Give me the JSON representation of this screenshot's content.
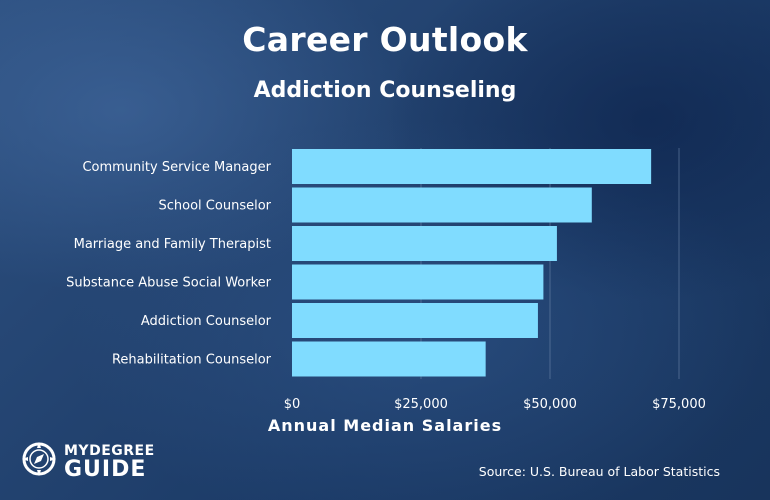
{
  "header": {
    "title": "Career Outlook",
    "subtitle": "Addiction Counseling"
  },
  "chart_data": {
    "type": "bar",
    "orientation": "horizontal",
    "categories": [
      "Community Service Manager",
      "School Counselor",
      "Marriage and Family Therapist",
      "Substance Abuse Social Worker",
      "Addiction Counselor",
      "Rehabilitation Counselor"
    ],
    "values": [
      69600,
      58100,
      51340,
      48720,
      47660,
      37530
    ],
    "xlabel": "Annual Median Salaries",
    "ylabel": "",
    "xlim": [
      0,
      75000
    ],
    "xticks": [
      {
        "value": 0,
        "label": "$0"
      },
      {
        "value": 25000,
        "label": "$25,000"
      },
      {
        "value": 50000,
        "label": "$50,000"
      },
      {
        "value": 75000,
        "label": "$75,000"
      }
    ],
    "grid": true,
    "bar_color": "#80dcff",
    "grid_color": "#6a84a8"
  },
  "footer": {
    "logo_top": "MYDEGREE",
    "logo_bottom": "GUIDE",
    "source": "Source: U.S. Bureau of Labor Statistics"
  }
}
